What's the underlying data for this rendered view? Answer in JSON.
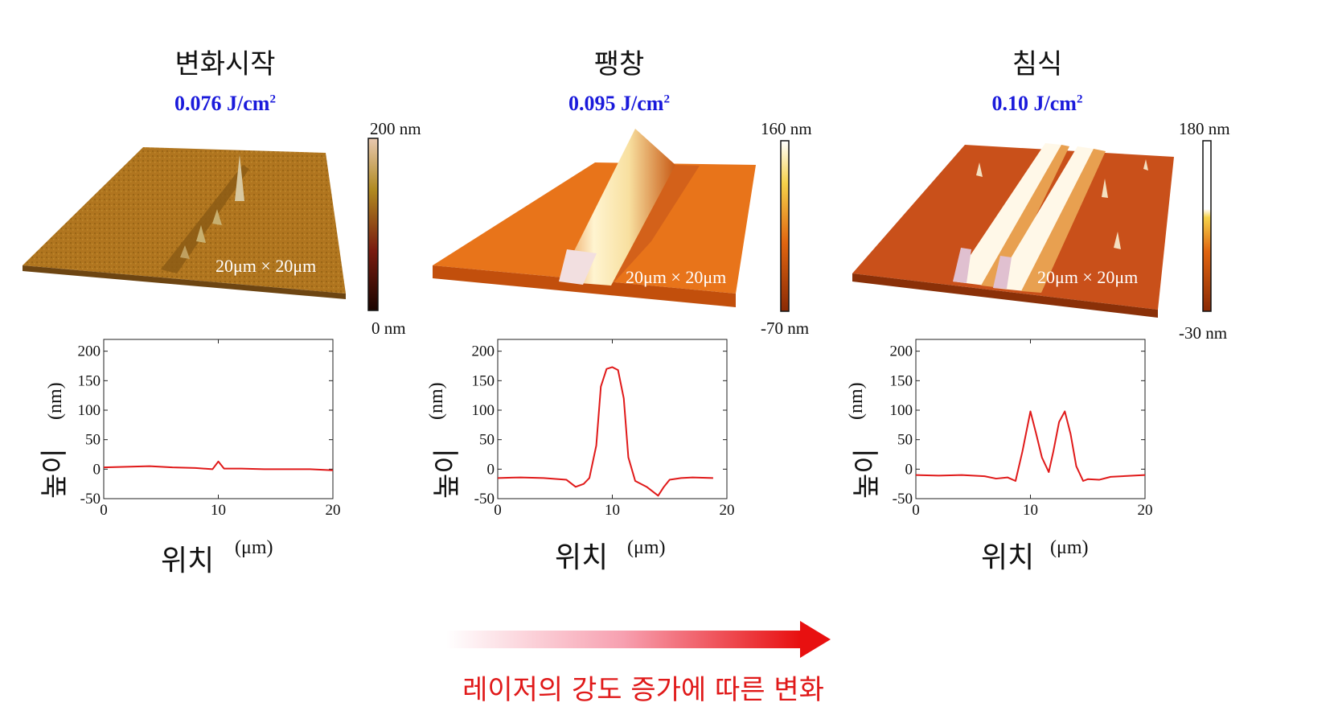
{
  "caption": "레이저의 강도 증가에 따른 변화",
  "colors": {
    "fluence": "#1a1adb",
    "profile_line": "#e01919",
    "caption": "#e01919"
  },
  "panels": [
    {
      "title": "변화시작",
      "fluence_value": "0.076 J/cm",
      "fluence_sup": "2",
      "scan_size": "20μm × 20μm",
      "colorbar_max": "200 nm",
      "colorbar_min": "0 nm",
      "xlabel": "위치",
      "xunit": "(μm)",
      "ylabel": "높이",
      "yunit": "(nm)"
    },
    {
      "title": "팽창",
      "fluence_value": "0.095 J/cm",
      "fluence_sup": "2",
      "scan_size": "20μm × 20μm",
      "colorbar_max": "160 nm",
      "colorbar_min": "-70 nm",
      "xlabel": "위치",
      "xunit": "(μm)",
      "ylabel": "높이",
      "yunit": "(nm)"
    },
    {
      "title": "침식",
      "fluence_value": "0.10 J/cm",
      "fluence_sup": "2",
      "scan_size": "20μm × 20μm",
      "colorbar_max": "180 nm",
      "colorbar_min": "-30 nm",
      "xlabel": "위치",
      "xunit": "(μm)",
      "ylabel": "높이",
      "yunit": "(nm)"
    }
  ],
  "chart_data": [
    {
      "type": "line",
      "xlim": [
        0,
        20
      ],
      "ylim": [
        -50,
        220
      ],
      "xticks": [
        0,
        10,
        20
      ],
      "yticks": [
        -50,
        0,
        50,
        100,
        150,
        200
      ],
      "x": [
        0,
        2,
        4,
        6,
        8,
        9.5,
        10,
        10.5,
        12,
        14,
        16,
        18,
        20
      ],
      "y": [
        3,
        4,
        5,
        3,
        2,
        0,
        13,
        1,
        1,
        0,
        0,
        0,
        -2
      ]
    },
    {
      "type": "line",
      "xlim": [
        0,
        20
      ],
      "ylim": [
        -50,
        220
      ],
      "xticks": [
        0,
        10,
        20
      ],
      "yticks": [
        -50,
        0,
        50,
        100,
        150,
        200
      ],
      "x": [
        0,
        2,
        4,
        6,
        6.8,
        7.5,
        8,
        8.6,
        9,
        9.5,
        10,
        10.5,
        11,
        11.4,
        12,
        13,
        14,
        14.5,
        15,
        16,
        17,
        18.8
      ],
      "y": [
        -15,
        -14,
        -15,
        -18,
        -30,
        -25,
        -15,
        40,
        140,
        170,
        173,
        168,
        120,
        20,
        -20,
        -30,
        -45,
        -30,
        -18,
        -15,
        -14,
        -15
      ]
    },
    {
      "type": "line",
      "xlim": [
        0,
        20
      ],
      "ylim": [
        -50,
        220
      ],
      "xticks": [
        0,
        10,
        20
      ],
      "yticks": [
        -50,
        0,
        50,
        100,
        150,
        200
      ],
      "x": [
        0,
        2,
        4,
        6,
        7,
        8,
        8.7,
        9.3,
        10,
        10.5,
        11,
        11.6,
        12,
        12.5,
        13,
        13.5,
        14,
        14.6,
        15,
        16,
        17,
        18,
        20
      ],
      "y": [
        -10,
        -11,
        -10,
        -12,
        -16,
        -14,
        -20,
        30,
        98,
        60,
        20,
        -5,
        30,
        80,
        98,
        60,
        5,
        -20,
        -17,
        -18,
        -13,
        -12,
        -10
      ]
    }
  ]
}
